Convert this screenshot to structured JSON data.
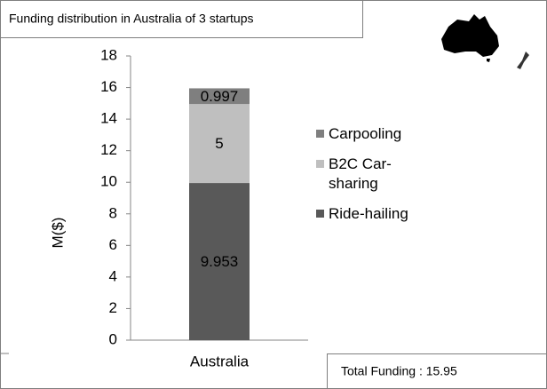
{
  "chart_data": {
    "type": "stacked_bar",
    "title": "Funding distribution in Australia of  3 startups",
    "ylabel": "M($)",
    "categories": [
      "Australia"
    ],
    "series": [
      {
        "name": "Ride-hailing",
        "color": "#595959",
        "values": [
          9.953
        ]
      },
      {
        "name": "B2C Car-sharing",
        "color": "#bfbfbf",
        "values": [
          5
        ]
      },
      {
        "name": "Carpooling",
        "color": "#7f7f7f",
        "values": [
          0.997
        ]
      }
    ],
    "ylim": [
      0,
      18
    ],
    "yticks": [
      0,
      2,
      4,
      6,
      8,
      10,
      12,
      14,
      16,
      18
    ],
    "annotation": "Total Funding : 15.95"
  }
}
